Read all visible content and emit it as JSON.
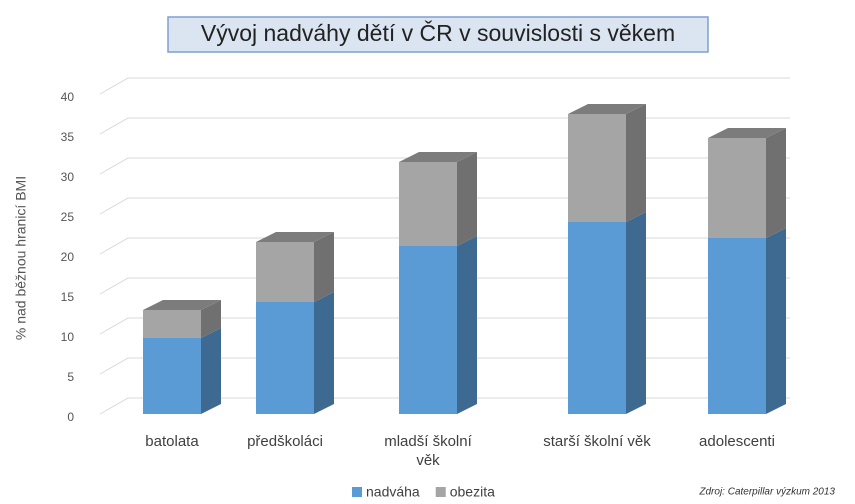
{
  "chart_data": {
    "type": "bar3d_stacked",
    "title": "Vývoj nadváhy dětí v ČR v souvislosti s věkem",
    "y_label": "% nad běžnou hranicí BMI",
    "categories": [
      "batolata",
      "předškoláci",
      "mladší školní\nvěk",
      "starší školní věk",
      "adolescenti"
    ],
    "series": [
      {
        "name": "nadváha",
        "color": "#5b9bd5",
        "values": [
          9.5,
          14,
          21,
          24,
          22
        ]
      },
      {
        "name": "obezita",
        "color": "#a5a5a5",
        "values": [
          3.5,
          7.5,
          10.5,
          13.5,
          12.5
        ]
      }
    ],
    "ylim": [
      0,
      40
    ],
    "yticks": [
      0,
      5,
      10,
      15,
      20,
      25,
      30,
      35,
      40
    ],
    "grid": true,
    "legend": "bottom",
    "source": "Zdroj: Caterpillar výzkum 2013"
  }
}
